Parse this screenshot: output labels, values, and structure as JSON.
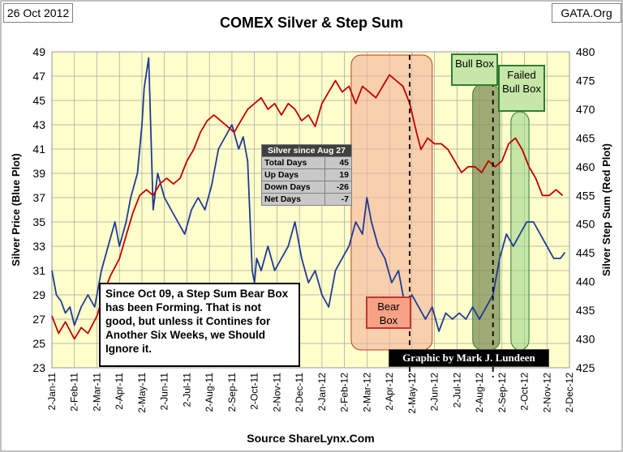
{
  "header": {
    "date": "26 Oct 2012",
    "site": "GATA.Org"
  },
  "chart_data": {
    "type": "line",
    "title": "COMEX Silver & Step Sum",
    "xlabel": "Source ShareLynx.Com",
    "ylabel_left": "Silver Price (Blue Plot)",
    "ylabel_right": "Silver Step Sum (Red Plot)",
    "ylim_left": [
      23,
      49
    ],
    "ylim_right": [
      425,
      480
    ],
    "yticks_left": [
      "23",
      "25",
      "27",
      "29",
      "31",
      "33",
      "35",
      "37",
      "39",
      "41",
      "43",
      "45",
      "47",
      "49"
    ],
    "yticks_right": [
      "425",
      "430",
      "435",
      "440",
      "445",
      "450",
      "455",
      "460",
      "465",
      "470",
      "475",
      "480"
    ],
    "xticks": [
      "2-Jan-11",
      "2-Feb-11",
      "2-Mar-11",
      "2-Apr-11",
      "2-May-11",
      "2-Jun-11",
      "2-Jul-11",
      "2-Aug-11",
      "2-Sep-11",
      "2-Oct-11",
      "2-Nov-11",
      "2-Dec-11",
      "2-Jan-12",
      "2-Feb-12",
      "2-Mar-12",
      "2-Apr-12",
      "2-May-12",
      "2-Jun-12",
      "2-Jul-12",
      "2-Aug-12",
      "2-Sep-12",
      "2-Oct-12",
      "2-Nov-12",
      "2-Dec-12"
    ],
    "grid": true,
    "series": [
      {
        "name": "Silver Price",
        "axis": "left",
        "color": "#1f3a93",
        "x": [
          0,
          0.2,
          0.4,
          0.6,
          0.8,
          1.0,
          1.3,
          1.6,
          1.9,
          2.2,
          2.5,
          2.8,
          3.0,
          3.3,
          3.5,
          3.8,
          4.0,
          4.1,
          4.3,
          4.5,
          4.7,
          5.0,
          5.3,
          5.6,
          5.9,
          6.2,
          6.5,
          6.8,
          7.1,
          7.4,
          7.7,
          8.0,
          8.3,
          8.5,
          8.7,
          8.9,
          9.0,
          9.1,
          9.3,
          9.6,
          9.9,
          10.2,
          10.5,
          10.8,
          11.1,
          11.4,
          11.7,
          12.0,
          12.3,
          12.6,
          12.9,
          13.2,
          13.5,
          13.8,
          14.0,
          14.2,
          14.5,
          14.8,
          15.1,
          15.4,
          15.7,
          16.0,
          16.3,
          16.6,
          16.9,
          17.2,
          17.5,
          17.8,
          18.1,
          18.4,
          18.7,
          19.0,
          19.3,
          19.6,
          19.9,
          20.2,
          20.5,
          20.8,
          21.1,
          21.4,
          21.7,
          22.0,
          22.3,
          22.6,
          22.8
        ],
        "y": [
          31,
          29,
          28.5,
          27.5,
          28,
          26.5,
          28,
          29,
          28,
          31,
          33,
          35,
          33,
          35,
          37,
          39,
          43,
          46,
          48.5,
          36,
          39,
          37,
          36,
          35,
          34,
          36,
          37,
          36,
          38,
          41,
          42,
          43,
          41,
          42,
          40,
          31,
          30,
          32,
          31,
          33,
          31,
          32,
          33,
          35,
          32,
          30,
          31,
          29,
          28,
          31,
          32,
          33,
          35,
          34,
          37,
          35,
          33,
          32,
          30,
          31,
          28,
          29,
          28,
          27,
          28,
          26,
          27.5,
          27,
          27.5,
          27,
          28,
          27,
          28,
          29,
          32,
          34,
          33,
          34,
          35,
          35,
          34,
          33,
          32,
          32,
          32.5
        ]
      },
      {
        "name": "Silver Step Sum",
        "axis": "right",
        "color": "#c00000",
        "x": [
          0,
          0.3,
          0.6,
          1.0,
          1.3,
          1.6,
          2.0,
          2.3,
          2.6,
          3.0,
          3.3,
          3.6,
          3.9,
          4.2,
          4.5,
          4.8,
          5.1,
          5.4,
          5.7,
          6.0,
          6.3,
          6.6,
          6.9,
          7.2,
          7.5,
          7.8,
          8.1,
          8.4,
          8.7,
          9.0,
          9.3,
          9.6,
          9.9,
          10.2,
          10.5,
          10.8,
          11.1,
          11.4,
          11.7,
          12.0,
          12.3,
          12.6,
          12.9,
          13.2,
          13.5,
          13.8,
          14.1,
          14.4,
          14.7,
          15.0,
          15.3,
          15.6,
          15.9,
          16.2,
          16.4,
          16.7,
          17.0,
          17.3,
          17.6,
          17.9,
          18.2,
          18.5,
          18.8,
          19.1,
          19.4,
          19.7,
          20.0,
          20.3,
          20.6,
          20.9,
          21.2,
          21.5,
          21.8,
          22.1,
          22.4,
          22.7
        ],
        "y": [
          434,
          431,
          433,
          430,
          432,
          431,
          434,
          438,
          441,
          444,
          448,
          452,
          455,
          456,
          455,
          457,
          458,
          457,
          458,
          461,
          463,
          466,
          468,
          469,
          468,
          467,
          466,
          468,
          470,
          471,
          472,
          470,
          471,
          469,
          471,
          470,
          468,
          469,
          467,
          471,
          473,
          475,
          473,
          474,
          471,
          474,
          473,
          472,
          474,
          476,
          475,
          474,
          471,
          466,
          463,
          465,
          464,
          464,
          463,
          461,
          459,
          460,
          460,
          459,
          461,
          460,
          461,
          464,
          465,
          463,
          460,
          458,
          455,
          455,
          456,
          455
        ]
      }
    ],
    "stats_table": {
      "title": "Silver since Aug 27",
      "rows": [
        {
          "label": "Total Days",
          "value": "45"
        },
        {
          "label": "Up Days",
          "value": "19"
        },
        {
          "label": "Down Days",
          "value": "-26"
        },
        {
          "label": "Net Days",
          "value": "-7"
        }
      ]
    },
    "annotations": {
      "note": "Since Oct 09, a Step Sum Bear Box has been Forming.  That is not good, but unless it Contines for Another Six Weeks, we Should Ignore it.",
      "bear_box": "Bear Box",
      "bull_box": "Bull Box",
      "failed_bull_box": "Failed Bull Box",
      "credit": "Graphic by Mark J. Lundeen"
    },
    "regions": [
      {
        "name": "Bear Box",
        "x": [
          13.3,
          16.9
        ],
        "color": "#f4b09a"
      },
      {
        "name": "Bull Box",
        "x": [
          18.7,
          19.9
        ],
        "color": "#7f8f57"
      },
      {
        "name": "Failed Bull Box",
        "x": [
          20.4,
          21.2
        ],
        "color": "#9ed68a"
      }
    ],
    "dashed_lines_x": [
      15.9,
      19.6
    ]
  }
}
